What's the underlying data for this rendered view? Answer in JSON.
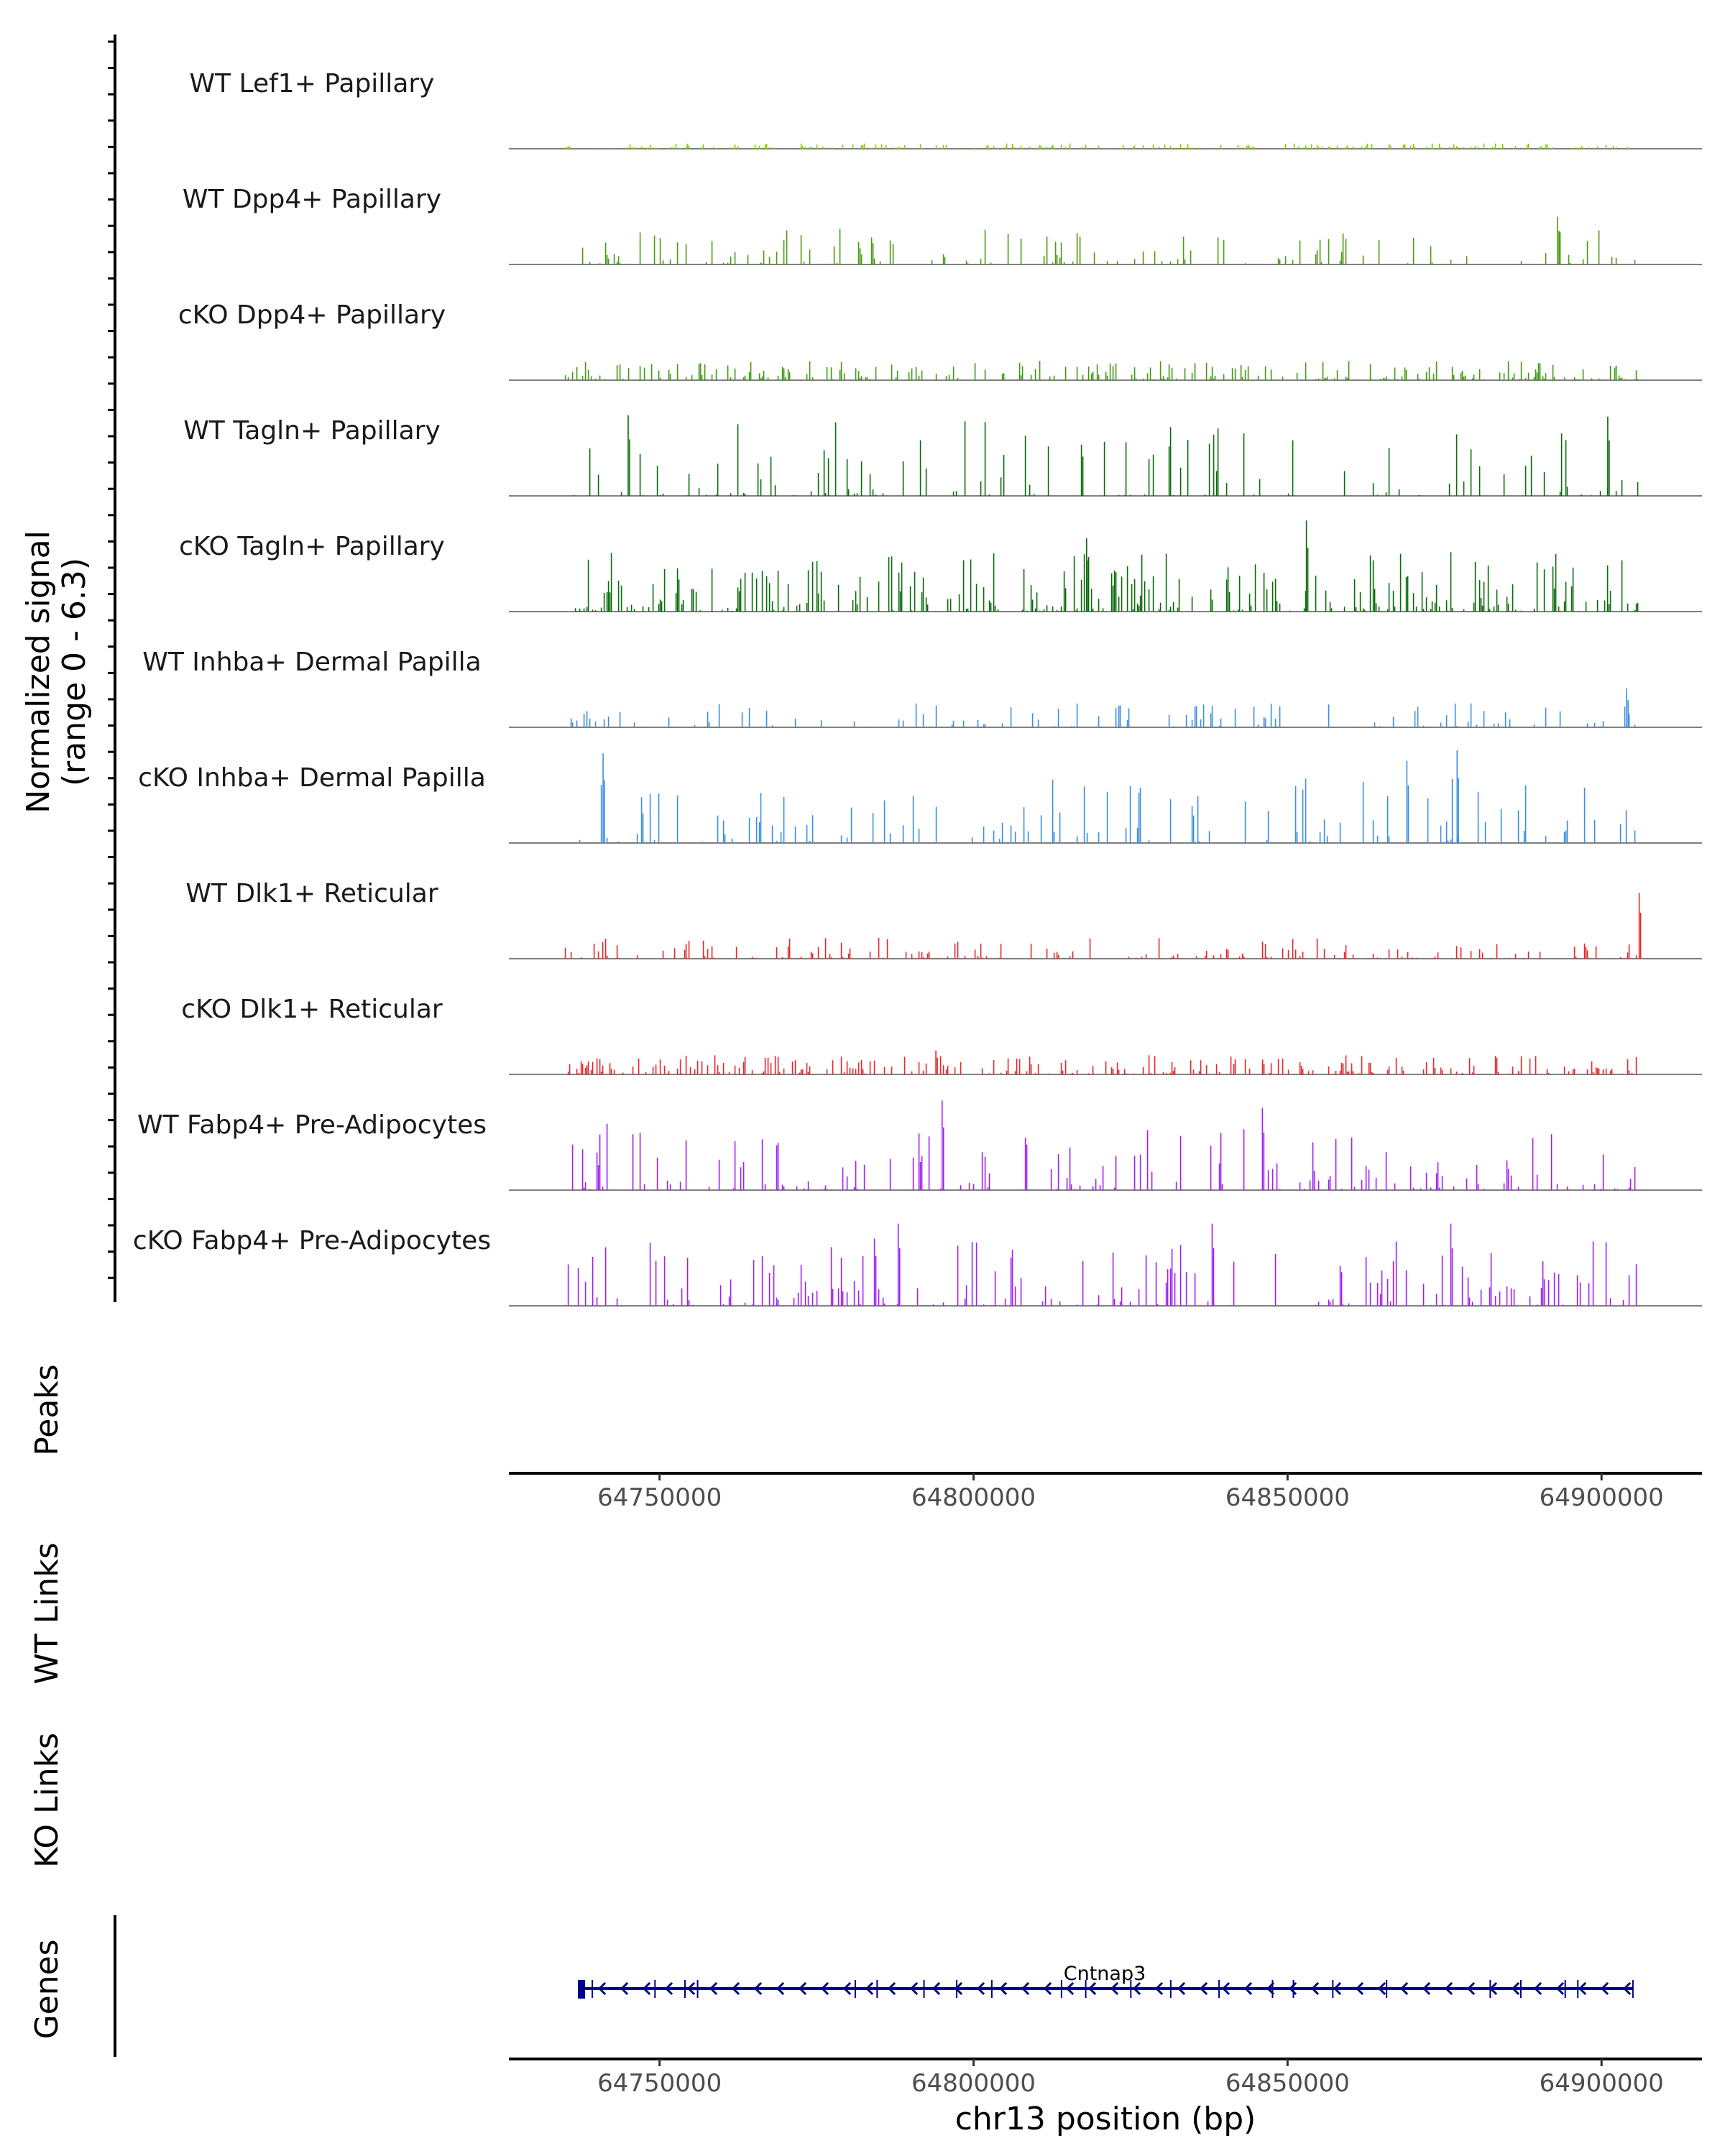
{
  "chart_data": {
    "type": "area",
    "title": "",
    "xlabel": "chr13 position (bp)",
    "ylabel": "Normalized signal (range 0 - 6.3)",
    "ylabel_lines": [
      "Normalized signal",
      "(range 0 - 6.3)"
    ],
    "ylim": [
      0,
      6.3
    ],
    "xlim": [
      64726000,
      64916000
    ],
    "x_ticks": [
      64750000,
      64800000,
      64850000,
      64900000
    ],
    "x_tick_labels": [
      "64750000",
      "64800000",
      "64850000",
      "64900000"
    ],
    "region_start": 64735000,
    "region_end": 64906000,
    "tracks": [
      {
        "name": "WT Lef1+ Papillary",
        "color": "#7ccd00",
        "density": 0.9,
        "peak": 0.35,
        "seed": 11,
        "spike_x": [],
        "spike_v": []
      },
      {
        "name": "WT Dpp4+ Papillary",
        "color": "#4b9b0f",
        "density": 0.35,
        "peak": 2.4,
        "seed": 23,
        "spike_x": [
          64893000
        ],
        "spike_v": [
          3.2
        ]
      },
      {
        "name": "cKO Dpp4+ Papillary",
        "color": "#3f9a12",
        "density": 0.8,
        "peak": 1.3,
        "seed": 37,
        "spike_x": [],
        "spike_v": []
      },
      {
        "name": "WT Tagln+ Papillary",
        "color": "#0a6b0a",
        "density": 0.3,
        "peak": 5.0,
        "seed": 41,
        "spike_x": [
          64745000,
          64901000
        ],
        "spike_v": [
          5.4,
          5.3
        ]
      },
      {
        "name": "cKO Tagln+ Papillary",
        "color": "#0a6b0a",
        "density": 0.7,
        "peak": 4.0,
        "seed": 53,
        "spike_x": [
          64853000,
          64818000
        ],
        "spike_v": [
          6.1,
          4.9
        ]
      },
      {
        "name": "WT Inhba+ Dermal Papilla",
        "color": "#3d8fdc",
        "density": 0.25,
        "peak": 1.6,
        "seed": 67,
        "spike_x": [
          64904000
        ],
        "spike_v": [
          2.6
        ]
      },
      {
        "name": "cKO Inhba+ Dermal Papilla",
        "color": "#3d8fdc",
        "density": 0.35,
        "peak": 4.5,
        "seed": 71,
        "spike_x": [
          64741000,
          64877000,
          64869000
        ],
        "spike_v": [
          6.0,
          6.2,
          5.5
        ]
      },
      {
        "name": "WT Dlk1+ Reticular",
        "color": "#e8262a",
        "density": 0.5,
        "peak": 1.4,
        "seed": 83,
        "spike_x": [
          64906000
        ],
        "spike_v": [
          4.4
        ]
      },
      {
        "name": "cKO Dlk1+ Reticular",
        "color": "#e8262a",
        "density": 0.8,
        "peak": 1.3,
        "seed": 97,
        "spike_x": [
          64794000
        ],
        "spike_v": [
          1.6
        ]
      },
      {
        "name": "WT Fabp4+ Pre-Adipocytes",
        "color": "#a020f0",
        "density": 0.4,
        "peak": 4.5,
        "seed": 101,
        "spike_x": [
          64795000,
          64846000
        ],
        "spike_v": [
          6.0,
          5.5
        ]
      },
      {
        "name": "cKO Fabp4+ Pre-Adipocytes",
        "color": "#a020f0",
        "density": 0.45,
        "peak": 4.5,
        "seed": 113,
        "spike_x": [
          64788000,
          64876000,
          64838000
        ],
        "spike_v": [
          5.5,
          5.5,
          5.5
        ]
      }
    ],
    "panel_labels": [
      "Peaks",
      "WT Links",
      "KO Links",
      "Genes"
    ],
    "gene": {
      "name": "Cntnap3",
      "start": 64737000,
      "end": 64905000,
      "strand": "-"
    }
  }
}
